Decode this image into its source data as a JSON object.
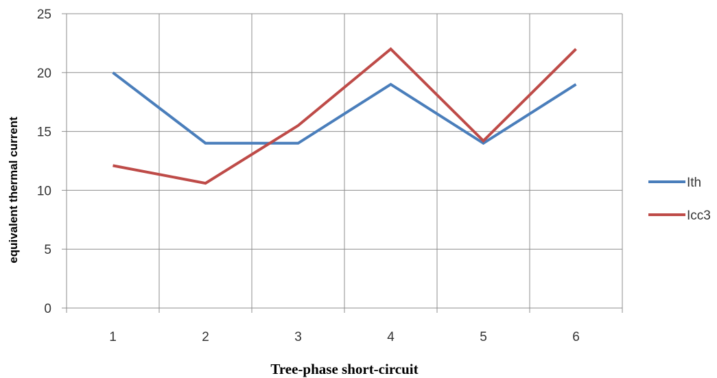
{
  "chart_data": {
    "type": "line",
    "title": "",
    "xlabel": "Tree-phase short-circuit",
    "ylabel": "equivalent thermal current",
    "categories": [
      "1",
      "2",
      "3",
      "4",
      "5",
      "6"
    ],
    "ylim": [
      0,
      25
    ],
    "yticks": [
      "0",
      "5",
      "10",
      "15",
      "20",
      "25"
    ],
    "grid": true,
    "legend_position": "right",
    "series": [
      {
        "name": "Ith",
        "color": "#4A7EBB",
        "values": [
          20,
          14,
          14,
          19,
          14,
          19
        ]
      },
      {
        "name": "Icc3",
        "color": "#BE4B48",
        "values": [
          12.1,
          10.6,
          15.5,
          22,
          14.2,
          22
        ]
      }
    ]
  }
}
